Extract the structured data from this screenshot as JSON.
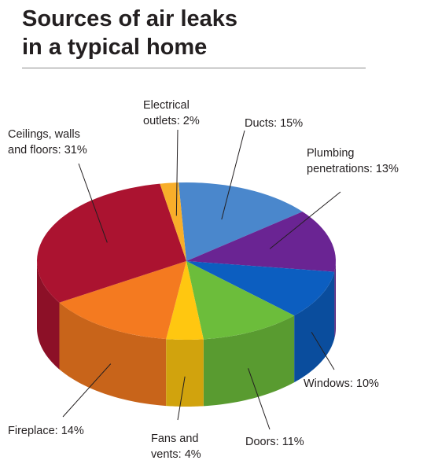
{
  "title_lines": [
    "Sources of air leaks",
    "in a typical home"
  ],
  "chart_data": {
    "type": "pie",
    "title": "Sources of air leaks in a typical home",
    "slices": [
      {
        "name": "Ducts",
        "value": 15,
        "color": "#4a87cc",
        "label_lines": [
          "Ducts: 15%"
        ]
      },
      {
        "name": "Plumbing penetrations",
        "value": 13,
        "color": "#6a2493",
        "label_lines": [
          "Plumbing",
          "penetrations: 13%"
        ]
      },
      {
        "name": "Windows",
        "value": 10,
        "color": "#0c5ec0",
        "label_lines": [
          "Windows: 10%"
        ]
      },
      {
        "name": "Doors",
        "value": 11,
        "color": "#6cbd3b",
        "label_lines": [
          "Doors: 11%"
        ]
      },
      {
        "name": "Fans and vents",
        "value": 4,
        "color": "#ffc710",
        "label_lines": [
          "Fans and",
          "vents: 4%"
        ]
      },
      {
        "name": "Fireplace",
        "value": 14,
        "color": "#f47a20",
        "label_lines": [
          "Fireplace: 14%"
        ]
      },
      {
        "name": "Ceilings, walls and floors",
        "value": 31,
        "color": "#ab1330",
        "label_lines": [
          "Ceilings, walls",
          "and floors: 31%"
        ]
      },
      {
        "name": "Electrical outlets",
        "value": 2,
        "color": "#f8ae2a",
        "label_lines": [
          "Electrical",
          "outlets: 2%"
        ]
      }
    ]
  }
}
